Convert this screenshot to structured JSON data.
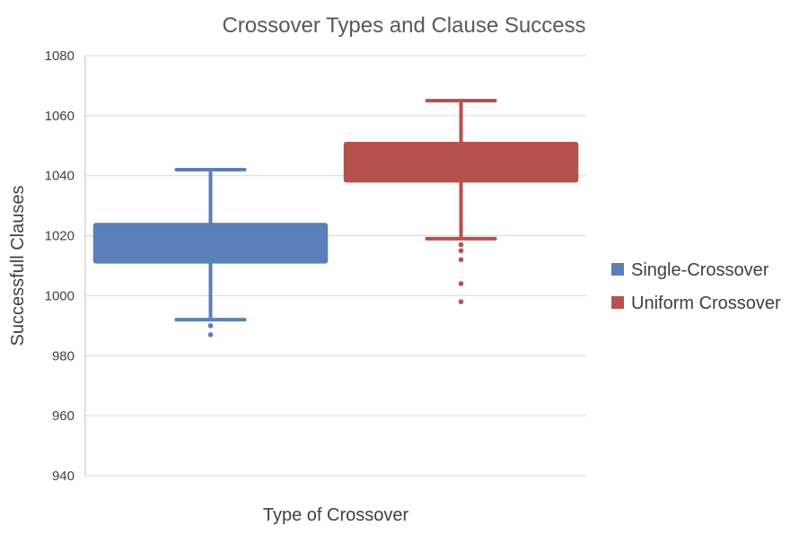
{
  "chart_data": {
    "type": "box",
    "title": "Crossover Types and Clause Success",
    "xlabel": "Type of Crossover",
    "ylabel": "Successfull Clauses",
    "ylim": [
      940,
      1080
    ],
    "yticks": [
      940,
      960,
      980,
      1000,
      1020,
      1040,
      1060,
      1080
    ],
    "grid": true,
    "legend_position": "right",
    "series": [
      {
        "name": "Single-Crossover",
        "color": "#5b7fba",
        "q1": 1011,
        "median": 1018,
        "q3": 1024,
        "whisker_low": 992,
        "whisker_high": 1042,
        "outliers": [
          987,
          990
        ]
      },
      {
        "name": "Uniform Crossover",
        "color": "#b5524f",
        "q1": 1038,
        "median": 1045,
        "q3": 1051,
        "whisker_low": 1019,
        "whisker_high": 1065,
        "outliers": [
          1017,
          1015,
          1012,
          1004,
          998
        ]
      }
    ]
  }
}
